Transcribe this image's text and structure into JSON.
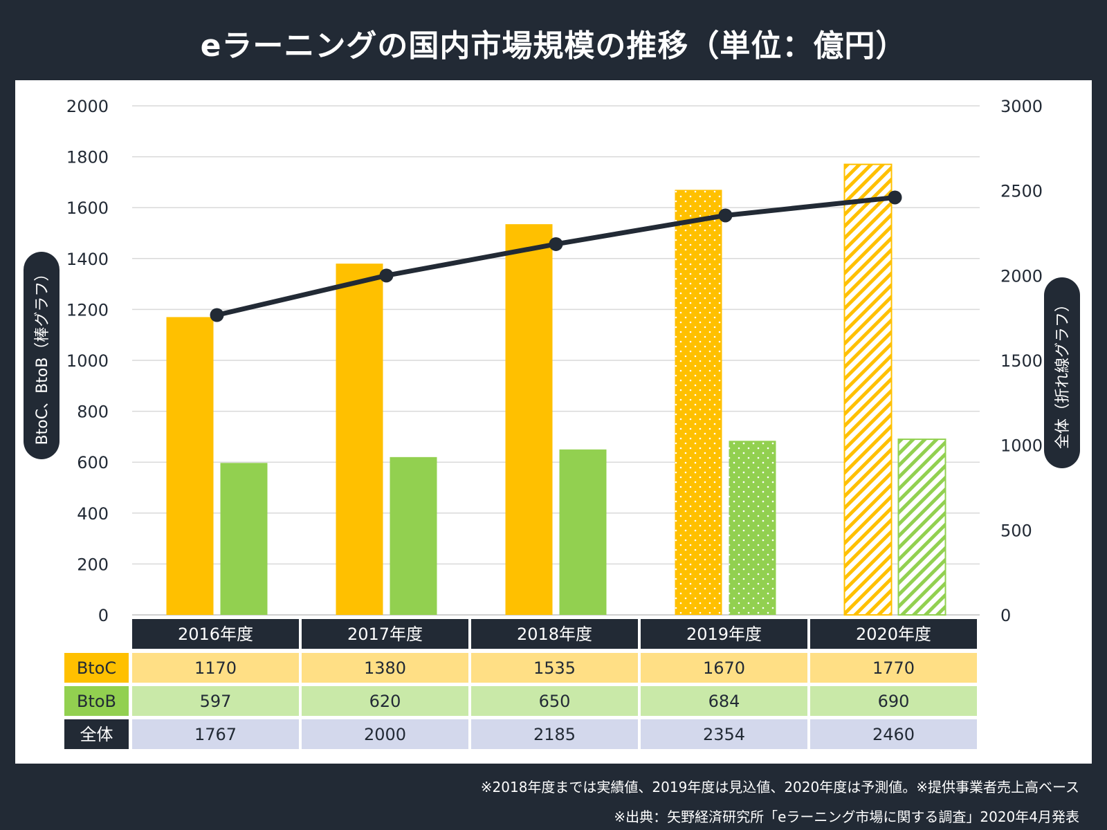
{
  "title": "eラーニングの国内市場規模の推移（単位：億円）",
  "footnotes": [
    "※2018年度までは実績値、2019年度は見込値、2020年度は予測値。※提供事業者売上高ベース",
    "※出典：矢野経済研究所「eラーニング市場に関する調査」2020年4月発表"
  ],
  "colors": {
    "background": "#222a35",
    "btoc": "#ffc000",
    "btob": "#92d050",
    "total_line": "#222a35",
    "btoc_row": "#ffdf85",
    "btob_row": "#c9e9a8",
    "total_row": "#d3d8ec",
    "header_cell": "#222a35"
  },
  "chart_data": {
    "type": "bar",
    "categories": [
      "2016年度",
      "2017年度",
      "2018年度",
      "2019年度",
      "2020年度"
    ],
    "series": [
      {
        "name": "BtoC",
        "type": "bar",
        "axis": "left",
        "values": [
          1170,
          1380,
          1535,
          1670,
          1770
        ]
      },
      {
        "name": "BtoB",
        "type": "bar",
        "axis": "left",
        "values": [
          597,
          620,
          650,
          684,
          690
        ]
      },
      {
        "name": "全体",
        "type": "line",
        "axis": "right",
        "values": [
          1767,
          2000,
          2185,
          2354,
          2460
        ]
      }
    ],
    "bar_patterns": [
      "solid",
      "solid",
      "solid",
      "dotted",
      "hatched"
    ],
    "ylabel": "BtoC、BtoB（棒グラフ）",
    "ylabel_right": "全体（折れ線グラフ）",
    "ylim": [
      0,
      2000
    ],
    "ylim_right": [
      0,
      3000
    ],
    "yticks": [
      0,
      200,
      400,
      600,
      800,
      1000,
      1200,
      1400,
      1600,
      1800,
      2000
    ],
    "yticks_right": [
      0,
      500,
      1000,
      1500,
      2000,
      2500,
      3000
    ],
    "grid": true,
    "data_table": true
  }
}
